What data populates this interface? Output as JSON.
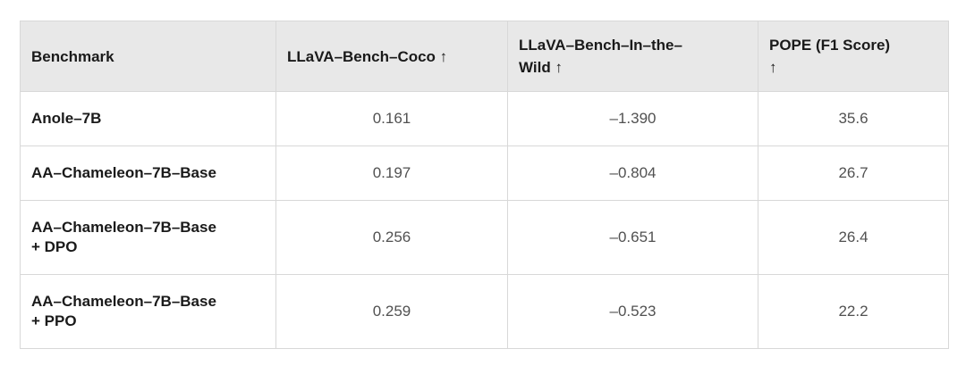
{
  "page": {
    "background_color": "#ffffff"
  },
  "table": {
    "header_bg_color": "#e8e8e8",
    "border_color": "#d8d8d8",
    "name_text_color": "#1a1a1a",
    "value_text_color": "#515151",
    "sort_indicator_icon": "up-arrow",
    "columns": [
      "Benchmark",
      "LLaVA–Bench–Coco ↑",
      "LLaVA–Bench–In–the–\nWild ↑",
      "POPE (F1 Score)\n↑"
    ],
    "rows": [
      {
        "name": "Anole–7B",
        "values": [
          "0.161",
          "–1.390",
          "35.6"
        ]
      },
      {
        "name": "AA–Chameleon–7B–Base",
        "values": [
          "0.197",
          "–0.804",
          "26.7"
        ]
      },
      {
        "name": "AA–Chameleon–7B–Base\n+ DPO",
        "values": [
          "0.256",
          "–0.651",
          "26.4"
        ]
      },
      {
        "name": "AA–Chameleon–7B–Base\n+ PPO",
        "values": [
          "0.259",
          "–0.523",
          "22.2"
        ]
      }
    ]
  }
}
